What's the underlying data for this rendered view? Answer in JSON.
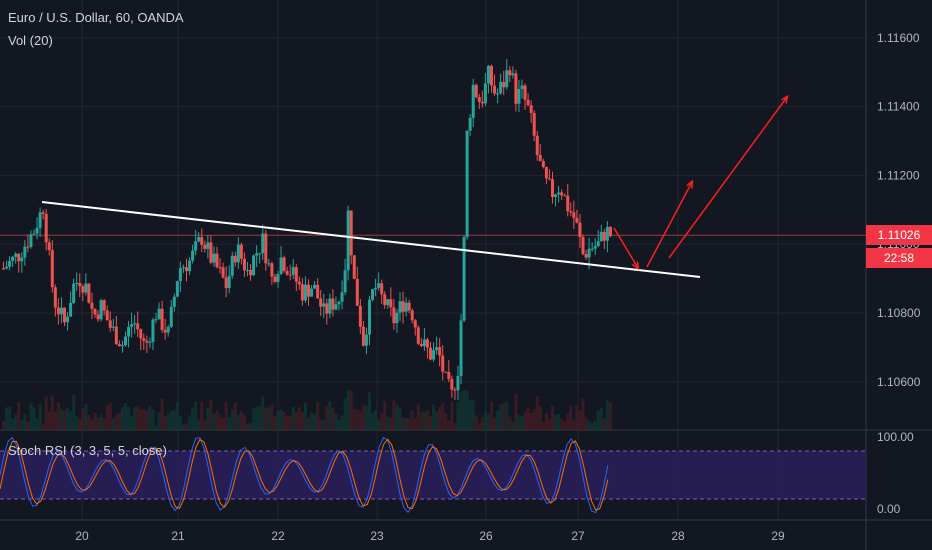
{
  "header": {
    "symbol_title": "Euro / U.S. Dollar, 60, OANDA",
    "volume_indicator": "Vol (20)"
  },
  "stoch_panel": {
    "label": "Stoch RSI (3, 3, 5, 5, close)",
    "axis": [
      "100.00",
      "0.00"
    ],
    "band_upper": 80,
    "band_lower": 20
  },
  "price_scale": {
    "last_price": "1.11026",
    "countdown": "22:58"
  },
  "colors": {
    "background": "#131722",
    "up": "#26a69a",
    "down": "#ef5350",
    "annotation_arrow": "#ff1e1e",
    "trendline": "#ffffff",
    "stoch_k": "#2962ff",
    "stoch_d": "#ff6d00",
    "stoch_band": "#2a1e5c"
  },
  "chart_data": {
    "type": "candlestick",
    "y_ticks": [
      "1.11600",
      "1.11400",
      "1.11200",
      "1.11000",
      "1.10800",
      "1.10600"
    ],
    "x_ticks": [
      "20",
      "21",
      "22",
      "23",
      "26",
      "27",
      "28",
      "29"
    ],
    "ylim": [
      1.1046,
      1.1171
    ],
    "trend_points": [
      [
        0.0,
        1.1093
      ],
      [
        1.0,
        1.1097
      ],
      [
        2.0,
        1.1104
      ],
      [
        2.6,
        1.1111
      ],
      [
        3.3,
        1.1084
      ],
      [
        4.0,
        1.1077
      ],
      [
        4.6,
        1.1088
      ],
      [
        5.0,
        1.109
      ],
      [
        5.5,
        1.1087
      ],
      [
        5.9,
        1.1079
      ],
      [
        6.4,
        1.1082
      ],
      [
        7.0,
        1.1076
      ],
      [
        7.8,
        1.1071
      ],
      [
        8.5,
        1.1078
      ],
      [
        9.3,
        1.107
      ],
      [
        10.0,
        1.108
      ],
      [
        10.8,
        1.1074
      ],
      [
        11.5,
        1.1093
      ],
      [
        12.2,
        1.1095
      ],
      [
        13.0,
        1.1102
      ],
      [
        13.6,
        1.1096
      ],
      [
        14.0,
        1.1093
      ],
      [
        14.6,
        1.1088
      ],
      [
        15.3,
        1.1099
      ],
      [
        16.0,
        1.1092
      ],
      [
        16.5,
        1.1097
      ],
      [
        17.0,
        1.1101
      ],
      [
        17.6,
        1.109
      ],
      [
        18.2,
        1.1096
      ],
      [
        19.0,
        1.1091
      ],
      [
        19.6,
        1.1086
      ],
      [
        20.3,
        1.1088
      ],
      [
        21.0,
        1.108
      ],
      [
        21.6,
        1.1083
      ],
      [
        22.0,
        1.1084
      ],
      [
        22.4,
        1.1094
      ],
      [
        22.6,
        1.1109
      ],
      [
        23.0,
        1.1089
      ],
      [
        23.6,
        1.1072
      ],
      [
        24.3,
        1.1088
      ],
      [
        25.0,
        1.1083
      ],
      [
        25.6,
        1.1078
      ],
      [
        26.3,
        1.1084
      ],
      [
        26.8,
        1.108
      ],
      [
        27.3,
        1.1072
      ],
      [
        28.0,
        1.1068
      ],
      [
        28.5,
        1.1069
      ],
      [
        29.0,
        1.106
      ],
      [
        29.4,
        1.1056
      ],
      [
        29.8,
        1.1064
      ],
      [
        30.1,
        1.1085
      ],
      [
        30.4,
        1.1132
      ],
      [
        30.8,
        1.1146
      ],
      [
        31.3,
        1.1141
      ],
      [
        31.8,
        1.1149
      ],
      [
        32.3,
        1.1143
      ],
      [
        32.8,
        1.1147
      ],
      [
        33.2,
        1.1152
      ],
      [
        33.6,
        1.1143
      ],
      [
        34.0,
        1.1144
      ],
      [
        34.5,
        1.1138
      ],
      [
        35.0,
        1.1126
      ],
      [
        35.5,
        1.1118
      ],
      [
        36.0,
        1.1115
      ],
      [
        36.5,
        1.1117
      ],
      [
        37.0,
        1.1111
      ],
      [
        37.5,
        1.1107
      ],
      [
        38.0,
        1.1097
      ],
      [
        38.5,
        1.1099
      ],
      [
        39.0,
        1.11
      ],
      [
        39.5,
        1.1104
      ],
      [
        40.0,
        1.1102
      ]
    ],
    "trendline": [
      [
        1.1113,
        0.0
      ],
      [
        1.109,
        1.0
      ]
    ],
    "stoch_levels": [
      80,
      20
    ]
  }
}
